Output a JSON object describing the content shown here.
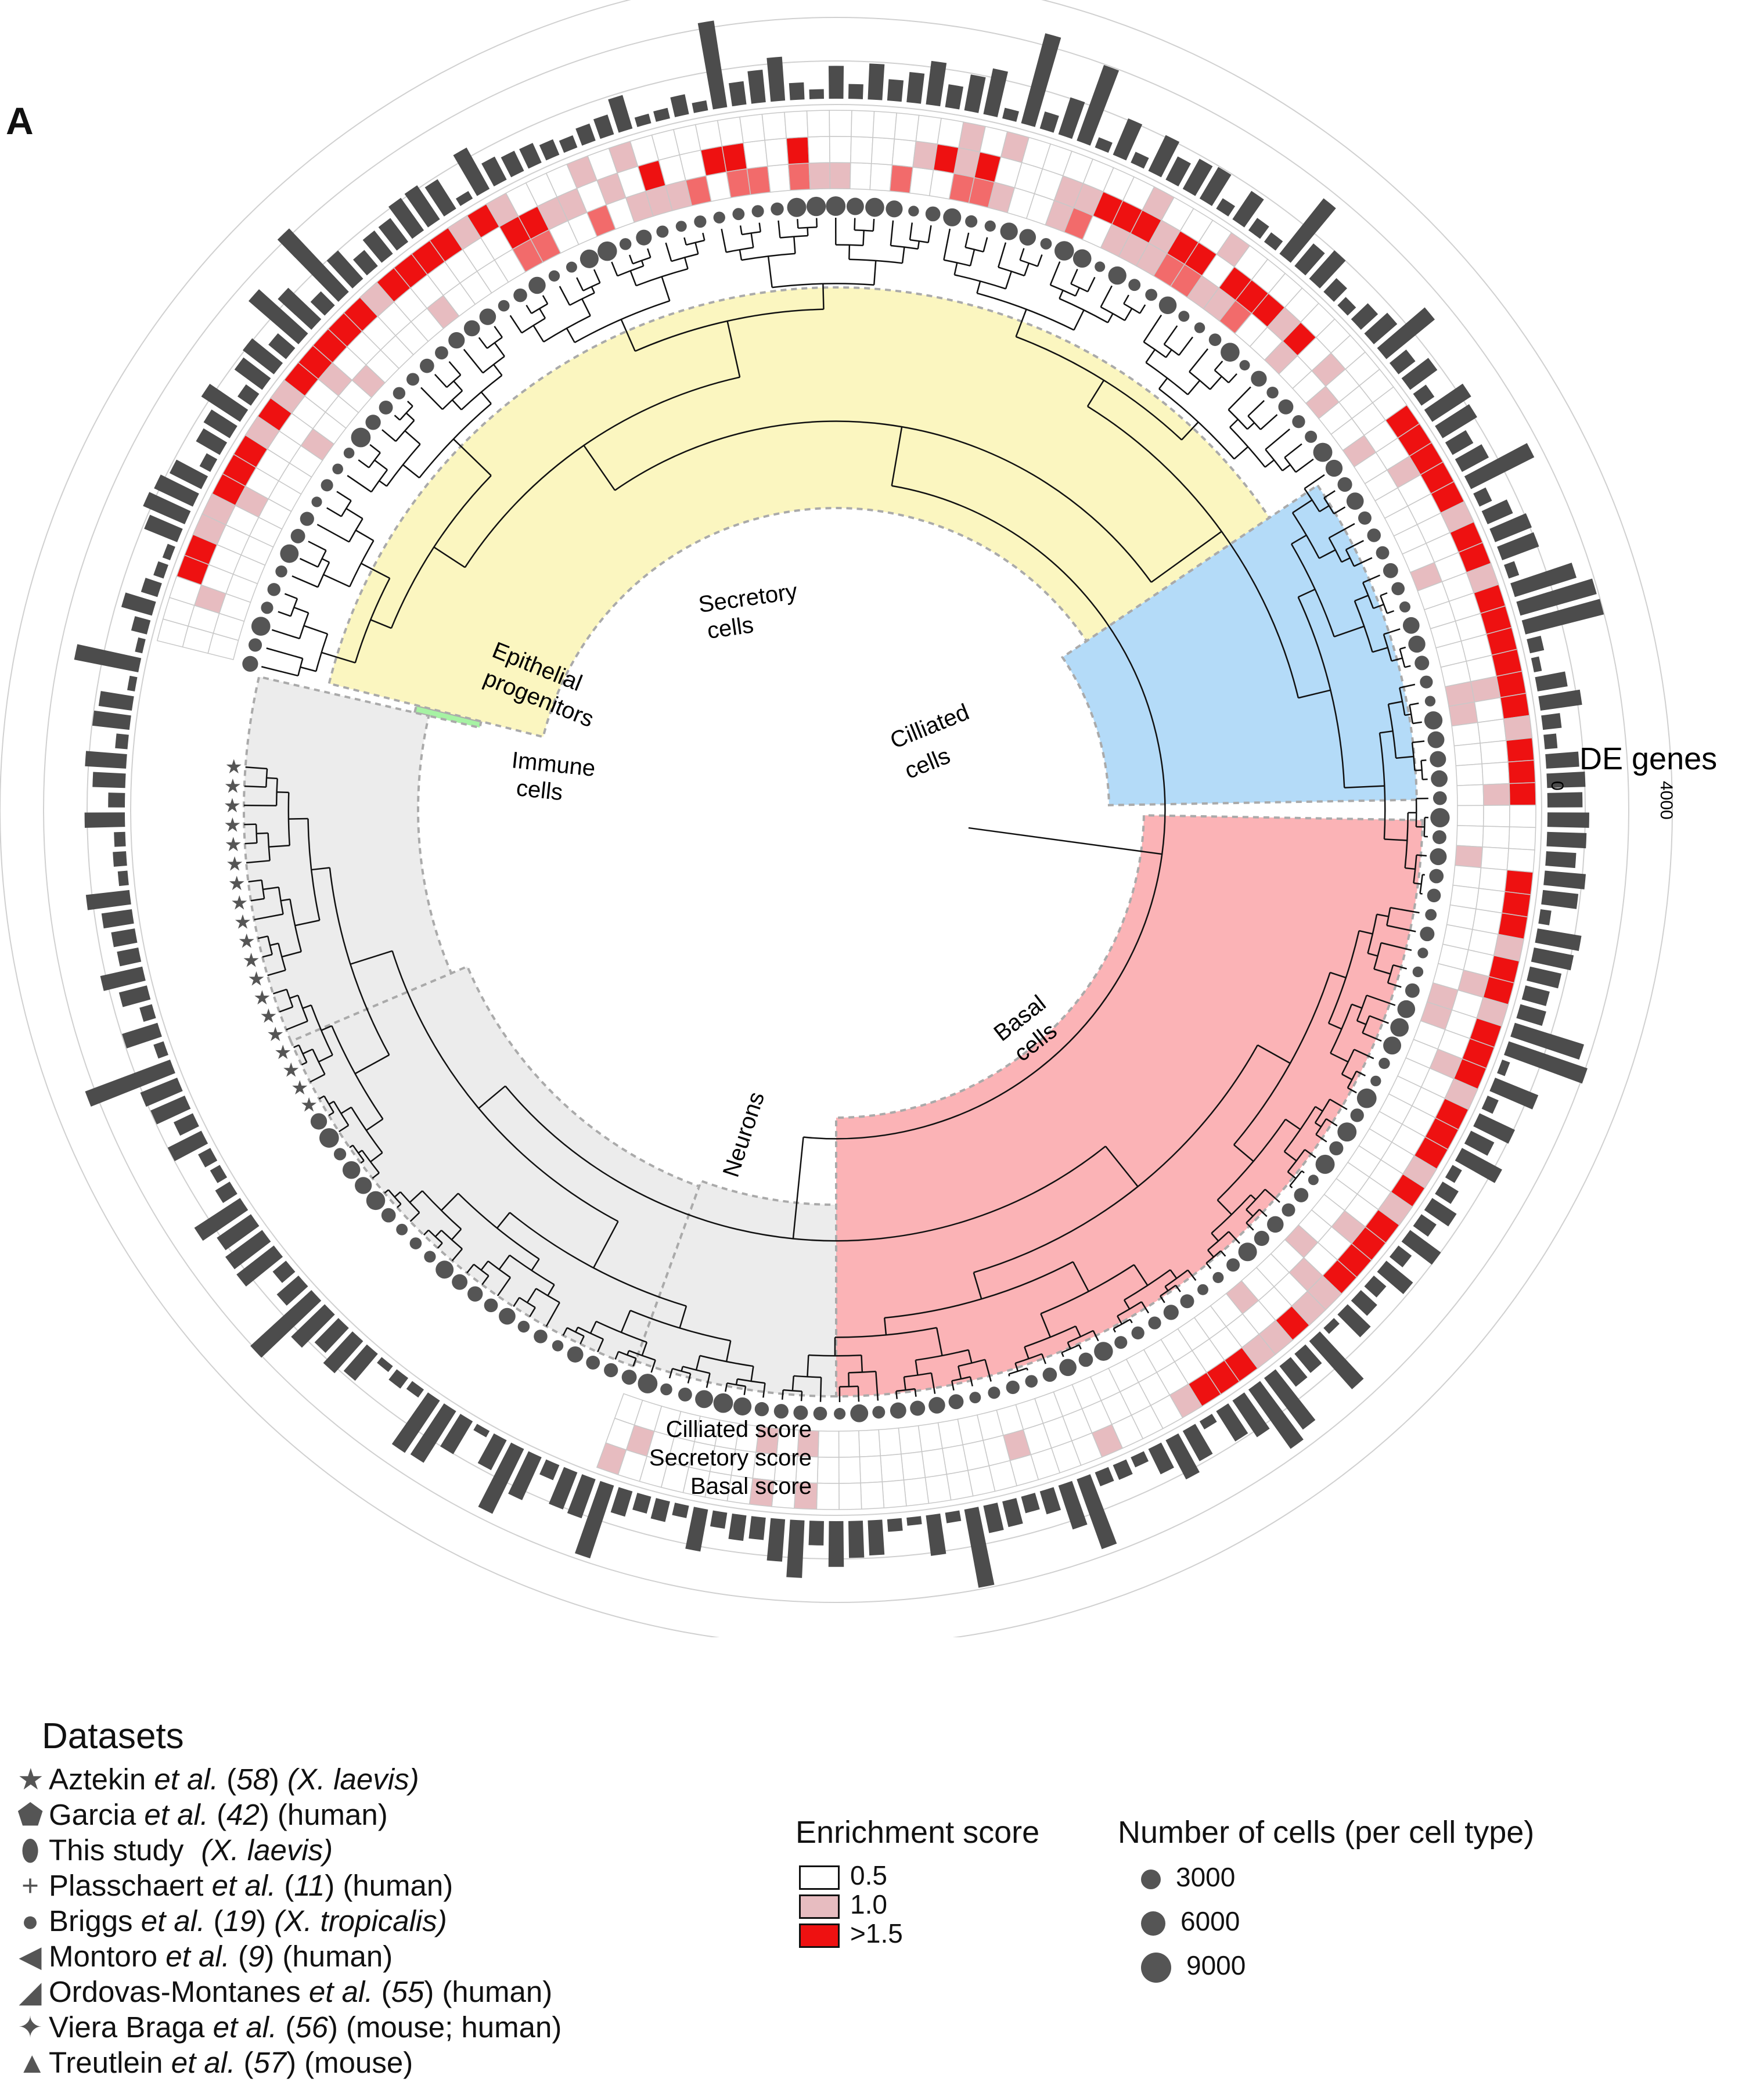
{
  "panel_letter": "A",
  "clade_labels": {
    "secretory": [
      "Secretory",
      "cells"
    ],
    "ciliated": [
      "Cilliated",
      "cells"
    ],
    "epithelial": [
      "Epithelial",
      "progenitors"
    ],
    "immune": [
      "Immune",
      "cells"
    ],
    "basal": [
      "Basal",
      "cells"
    ],
    "neurons": "Neurons"
  },
  "score_labels": [
    "Cilliated score",
    "Secretory score",
    "Basal score"
  ],
  "de_genes": {
    "title": "DE genes",
    "tick_min": "0",
    "tick_max": "4000"
  },
  "datasets_legend": {
    "title": "Datasets",
    "items": [
      {
        "symbol": "star",
        "glyph": "★",
        "author": "Aztekin",
        "etal": " et al.",
        "ref": "58",
        "species": "(X. laevis)",
        "species_italic": true
      },
      {
        "symbol": "pentagon",
        "glyph": "⬟",
        "author": "Garcia",
        "etal": " et al.",
        "ref": "42",
        "species": "(human)",
        "species_italic": false
      },
      {
        "symbol": "ellipse",
        "glyph": "⬮",
        "author": "This study",
        "etal": "",
        "ref": "",
        "species": "(X. laevis)",
        "species_italic": true
      },
      {
        "symbol": "plus",
        "glyph": "+",
        "author": "Plasschaert",
        "etal": " et al.",
        "ref": "11",
        "species": "(human)",
        "species_italic": false
      },
      {
        "symbol": "circle",
        "glyph": "●",
        "author": "Briggs",
        "etal": " et al.",
        "ref": "19",
        "species": "(X. tropicalis)",
        "species_italic": true
      },
      {
        "symbol": "wedge-left",
        "glyph": "◀",
        "author": "Montoro",
        "etal": " et al.",
        "ref": "9",
        "species": "(human)",
        "species_italic": false
      },
      {
        "symbol": "wedge-right",
        "glyph": "◢",
        "author": "Ordovas-Montanes",
        "etal": " et al.",
        "ref": "55",
        "species": "(human)",
        "species_italic": false
      },
      {
        "symbol": "four-star",
        "glyph": "✦",
        "author": "Viera Braga",
        "etal": " et al.",
        "ref": "56",
        "species": "(mouse; human)",
        "species_italic": false
      },
      {
        "symbol": "triangle",
        "glyph": "▲",
        "author": "Treutlein",
        "etal": " et al.",
        "ref": "57",
        "species": "(mouse)",
        "species_italic": false
      }
    ]
  },
  "enrichment_legend": {
    "title": "Enrichment score",
    "items": [
      {
        "label": "0.5",
        "color": "#ffffff"
      },
      {
        "label": "1.0",
        "color": "#e7bcc0"
      },
      {
        "label": ">1.5",
        "color": "#ee1111"
      }
    ]
  },
  "cells_legend": {
    "title": "Number of cells (per cell type)",
    "items": [
      {
        "label": "3000",
        "dot": "small"
      },
      {
        "label": "6000",
        "dot": "medium"
      },
      {
        "label": "9000",
        "dot": "large"
      }
    ]
  },
  "colors": {
    "secretory_clade": "#fbf6c0",
    "ciliated_clade": "#b4dbf8",
    "epithelial_clade": "#a6f2a3",
    "immune_clade": "#ececec",
    "basal_clade": "#fbb3b6",
    "enrich_high": "#ee1111",
    "enrich_mid": "#e7bcc0",
    "bar": "#4c4c4c"
  }
}
